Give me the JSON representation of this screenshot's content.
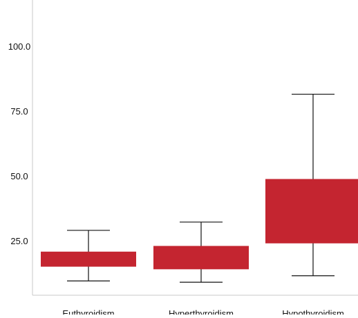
{
  "chart_data": {
    "type": "boxplot",
    "title": "",
    "xlabel": "",
    "ylabel": "",
    "ylim": [
      0,
      120
    ],
    "yticks": [
      25.0,
      50.0,
      75.0,
      100.0
    ],
    "ytick_labels": [
      "25.0",
      "50.0",
      "75.0",
      "100.0"
    ],
    "categories": [
      "Euthyroidism",
      "Hyperthyroidism",
      "Hypothyroidism"
    ],
    "boxes": [
      {
        "category": "Euthyroidism",
        "whisker_low": 9.5,
        "q1": 15.0,
        "q3": 20.8,
        "whisker_high": 29.0
      },
      {
        "category": "Hyperthyroidism",
        "whisker_low": 9.0,
        "q1": 14.0,
        "q3": 23.0,
        "whisker_high": 32.2
      },
      {
        "category": "Hypothyroidism",
        "whisker_low": 11.5,
        "q1": 24.0,
        "q3": 48.8,
        "whisker_high": 81.5
      }
    ],
    "box_color": "#c42530",
    "line_color": "#111111",
    "axis_color": "#c8c8c8",
    "grid": false
  }
}
